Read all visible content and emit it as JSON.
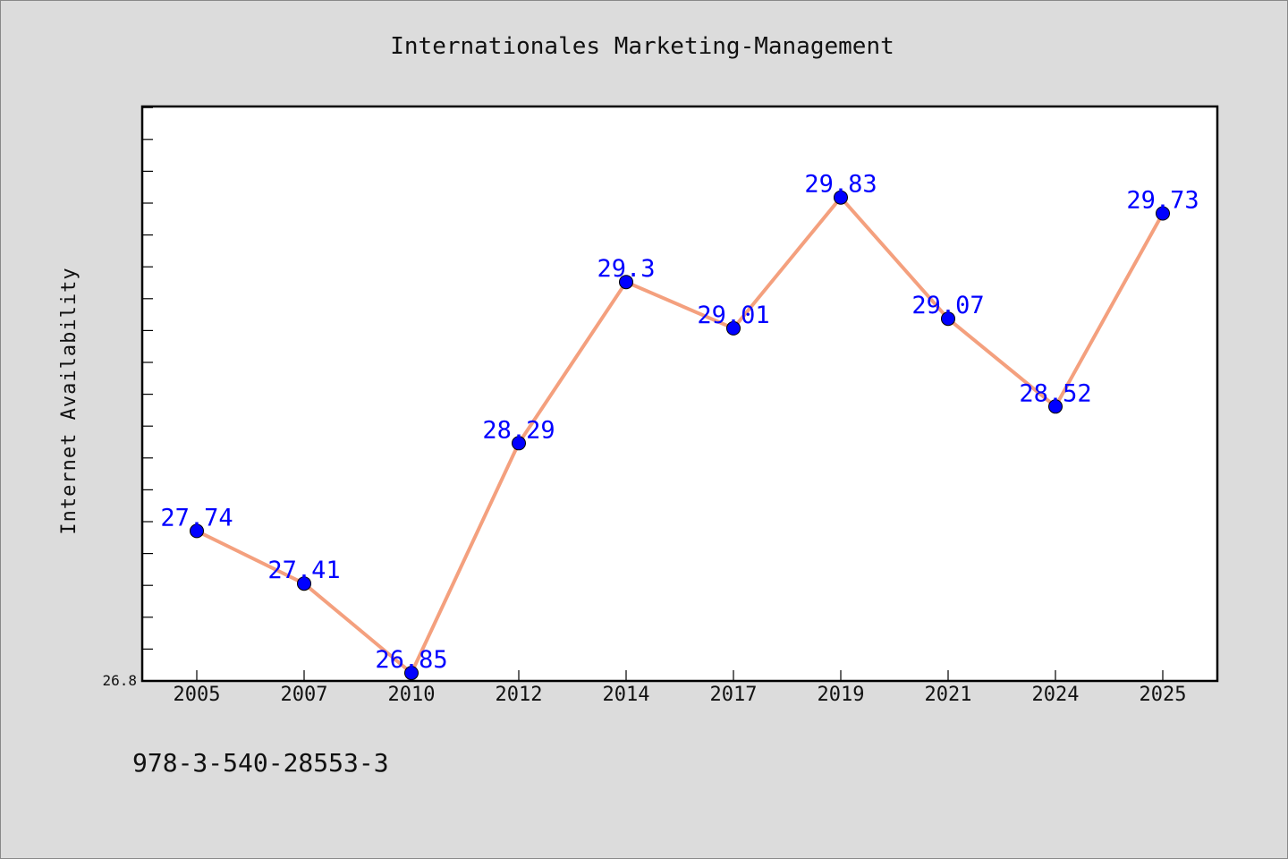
{
  "chart_data": {
    "type": "line",
    "title": "Internationales Marketing-Management",
    "xlabel": "",
    "ylabel": "Internet Availability",
    "categories": [
      "2005",
      "2007",
      "2010",
      "2012",
      "2014",
      "2017",
      "2019",
      "2021",
      "2024",
      "2025"
    ],
    "series": [
      {
        "values": [
          27.74,
          27.41,
          26.85,
          28.29,
          29.3,
          29.01,
          29.83,
          29.07,
          28.52,
          29.73
        ],
        "line_color": "#f4a07e",
        "marker_color": "#0000ff",
        "label_color": "#0000ff"
      }
    ],
    "ylim": [
      26.8,
      30.4
    ],
    "y_tick_label": "26.8",
    "grid": false,
    "legend": "none"
  },
  "footer": {
    "text": "978-3-540-28553-3"
  },
  "colors": {
    "page_background": "#dcdcdc",
    "plot_background": "#ffffff",
    "axis": "#000000"
  }
}
